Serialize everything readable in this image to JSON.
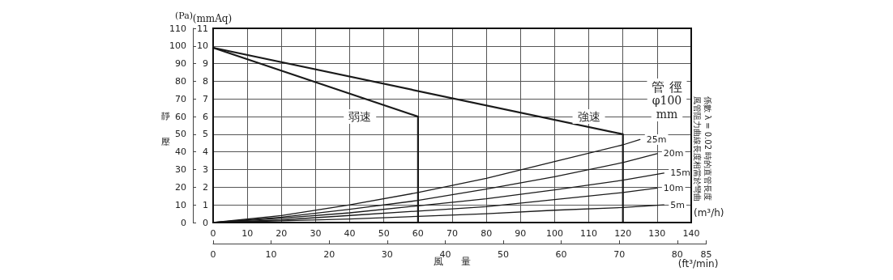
{
  "chart_data": {
    "type": "line",
    "xlabel": "風量",
    "ylabel": "靜壓",
    "y2label": "(Pa)",
    "x2label": "(ft³/min)",
    "annotations": [
      "(mmAq)",
      "(m³/h)",
      "管 徑",
      "φ100",
      "mm",
      "風管阻力曲線長度相當於彎曲",
      "係數 λ = 0.02 時的直管長度",
      "弱速",
      "強速"
    ],
    "series": [
      {
        "color": "#1a1a1a",
        "x": [
          0,
          60,
          60
        ],
        "values": [
          9.9,
          6,
          0
        ]
      },
      {
        "color": "#1a1a1a",
        "x": [
          0,
          120,
          120
        ],
        "values": [
          9.9,
          5,
          0
        ]
      },
      {
        "name": "25m",
        "color": "#1a1a1a",
        "x": [
          0,
          20,
          40,
          60,
          80,
          100,
          120,
          125
        ],
        "values": [
          0,
          0.4,
          1.0,
          1.7,
          2.5,
          3.45,
          4.4,
          4.7
        ]
      },
      {
        "name": "20m",
        "color": "#1a1a1a",
        "x": [
          0,
          20,
          40,
          60,
          80,
          100,
          120,
          130
        ],
        "values": [
          0,
          0.3,
          0.75,
          1.25,
          1.9,
          2.6,
          3.4,
          3.9
        ]
      },
      {
        "name": "15m",
        "color": "#1a1a1a",
        "x": [
          0,
          20,
          40,
          60,
          80,
          100,
          120,
          132
        ],
        "values": [
          0,
          0.25,
          0.55,
          0.95,
          1.35,
          1.85,
          2.4,
          2.8
        ]
      },
      {
        "name": "10m",
        "color": "#1a1a1a",
        "x": [
          0,
          20,
          40,
          60,
          80,
          100,
          120,
          130
        ],
        "values": [
          0,
          0.15,
          0.4,
          0.65,
          0.9,
          1.3,
          1.7,
          1.95
        ]
      },
      {
        "name": "5m",
        "color": "#1a1a1a",
        "x": [
          0,
          20,
          40,
          60,
          80,
          100,
          120,
          132
        ],
        "values": [
          0,
          0.1,
          0.2,
          0.35,
          0.5,
          0.7,
          0.85,
          1.0
        ]
      }
    ],
    "xlim": [
      0,
      140
    ],
    "xticks": [
      0,
      10,
      20,
      30,
      40,
      50,
      60,
      70,
      80,
      90,
      100,
      110,
      120,
      130,
      140
    ],
    "ylim": [
      0,
      11
    ],
    "yticks": [
      0,
      1,
      2,
      3,
      4,
      5,
      6,
      7,
      8,
      9,
      10,
      11
    ],
    "y2lim": [
      0,
      110
    ],
    "y2ticks": [
      0,
      10,
      20,
      30,
      40,
      50,
      60,
      70,
      80,
      90,
      100,
      110
    ],
    "x2lim": [
      0,
      85
    ],
    "x2ticks": [
      0,
      10,
      20,
      30,
      40,
      50,
      60,
      70,
      80,
      85
    ],
    "grid": true,
    "legend": false,
    "marker": "none",
    "line_style": "solid"
  }
}
